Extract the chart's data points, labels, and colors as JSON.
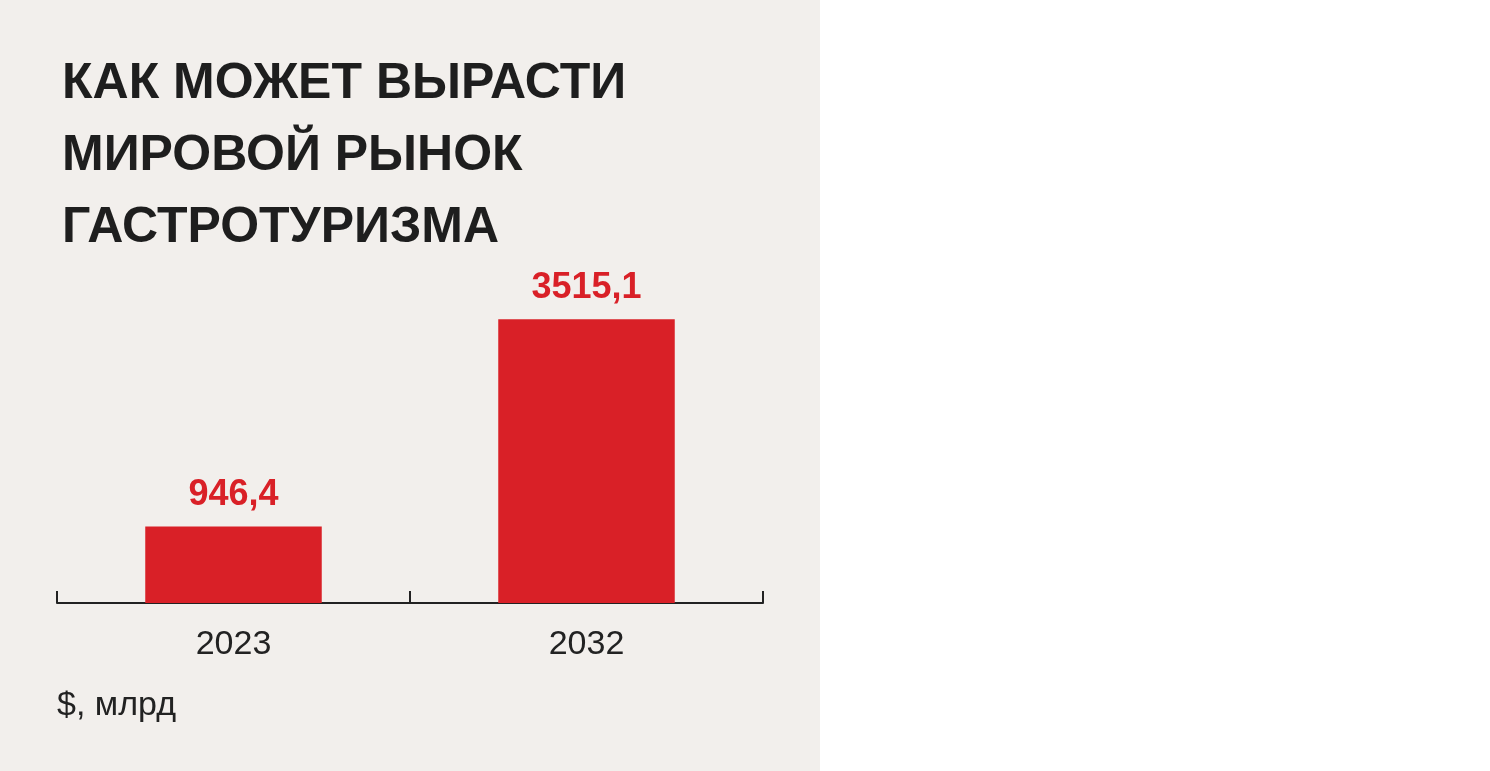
{
  "chart_data": {
    "type": "bar",
    "title": "КАК МОЖЕТ ВЫРАСТИ\nМИРОВОЙ РЫНОК\nГАСТРОТУРИЗМА",
    "categories": [
      "2023",
      "2032"
    ],
    "values": [
      946.4,
      3515.1
    ],
    "value_labels": [
      "946,4",
      "3515,1"
    ],
    "color": "#d92027",
    "annotations": [
      "$, млрд"
    ]
  }
}
